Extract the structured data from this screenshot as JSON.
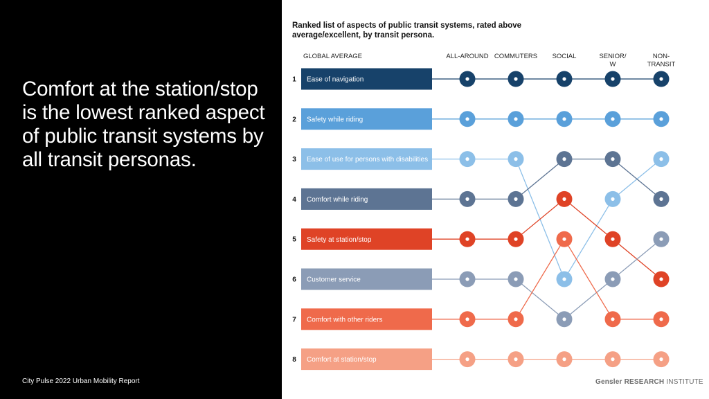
{
  "headline": "Comfort at the station/stop is the lowest ranked aspect of public transit systems by all transit personas.",
  "footer": "City Pulse 2022 Urban Mobility Report",
  "logo": {
    "brand": "Gensler RESEARCH",
    "suffix": "INSTITUTE"
  },
  "colors": {
    "ease_of_navigation": "#17426a",
    "safety_while_riding": "#5aa0da",
    "ease_of_use_disabilities": "#8cbfe8",
    "comfort_while_riding": "#5d7493",
    "safety_at_station": "#df4326",
    "customer_service": "#8b9cb6",
    "comfort_with_other_riders": "#ef6a4b",
    "comfort_at_station": "#f5a085"
  },
  "chart_data": {
    "type": "bump",
    "title": "Ranked list of aspects of public transit systems, rated above average/excellent, by transit persona.",
    "ranks": [
      "1",
      "2",
      "3",
      "4",
      "5",
      "6",
      "7",
      "8"
    ],
    "column_header_global": "GLOBAL AVERAGE",
    "personas": [
      {
        "id": "all_around",
        "label": "ALL-AROUND"
      },
      {
        "id": "commuters",
        "label": "COMMUTERS"
      },
      {
        "id": "social",
        "label": "SOCIAL"
      },
      {
        "id": "senior",
        "label": "SENIOR/ W/ DISABILITY"
      },
      {
        "id": "non_transit",
        "label": "NON- TRANSIT"
      }
    ],
    "series": [
      {
        "id": "ease_of_navigation",
        "name": "Ease of navigation",
        "global_rank": 1,
        "ranks": [
          1,
          1,
          1,
          1,
          1
        ]
      },
      {
        "id": "safety_while_riding",
        "name": "Safety while riding",
        "global_rank": 2,
        "ranks": [
          2,
          2,
          2,
          2,
          2
        ]
      },
      {
        "id": "ease_of_use_disabilities",
        "name": "Ease of use for persons with disabilities",
        "global_rank": 3,
        "ranks": [
          3,
          3,
          6,
          4,
          3
        ]
      },
      {
        "id": "comfort_while_riding",
        "name": "Comfort while riding",
        "global_rank": 4,
        "ranks": [
          4,
          4,
          3,
          3,
          4
        ]
      },
      {
        "id": "safety_at_station",
        "name": "Safety at station/stop",
        "global_rank": 5,
        "ranks": [
          5,
          5,
          4,
          5,
          6
        ]
      },
      {
        "id": "customer_service",
        "name": "Customer service",
        "global_rank": 6,
        "ranks": [
          6,
          6,
          7,
          6,
          5
        ]
      },
      {
        "id": "comfort_with_other_riders",
        "name": "Comfort with other riders",
        "global_rank": 7,
        "ranks": [
          7,
          7,
          5,
          7,
          7
        ]
      },
      {
        "id": "comfort_at_station",
        "name": "Comfort at station/stop",
        "global_rank": 8,
        "ranks": [
          8,
          8,
          8,
          8,
          8
        ]
      }
    ]
  }
}
